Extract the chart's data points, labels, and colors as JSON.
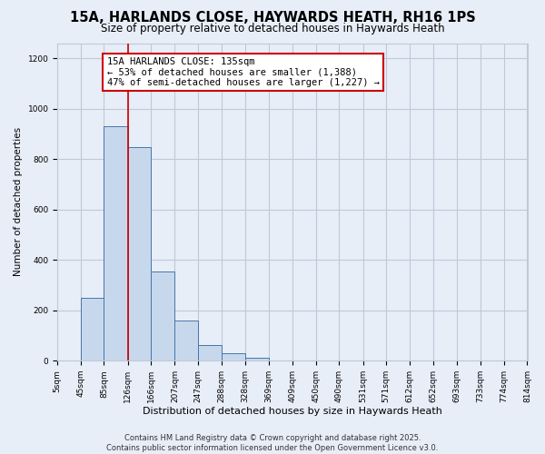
{
  "title": "15A, HARLANDS CLOSE, HAYWARDS HEATH, RH16 1PS",
  "subtitle": "Size of property relative to detached houses in Haywards Heath",
  "xlabel": "Distribution of detached houses by size in Haywards Heath",
  "ylabel": "Number of detached properties",
  "bar_color": "#c8d8ec",
  "bar_edge_color": "#4477aa",
  "background_color": "#e8eef8",
  "grid_color": "#c0c8d8",
  "vline_x": 126,
  "vline_color": "#cc0000",
  "bin_edges": [
    5,
    45,
    85,
    126,
    166,
    207,
    247,
    288,
    328,
    369,
    409,
    450,
    490,
    531,
    571,
    612,
    652,
    693,
    733,
    774,
    814
  ],
  "bin_heights": [
    0,
    248,
    930,
    848,
    355,
    158,
    62,
    28,
    10,
    0,
    0,
    0,
    0,
    0,
    0,
    0,
    0,
    0,
    0,
    0
  ],
  "ylim": [
    0,
    1260
  ],
  "yticks": [
    0,
    200,
    400,
    600,
    800,
    1000,
    1200
  ],
  "annotation_title": "15A HARLANDS CLOSE: 135sqm",
  "annotation_line2": "← 53% of detached houses are smaller (1,388)",
  "annotation_line3": "47% of semi-detached houses are larger (1,227) →",
  "annotation_box_color": "#ffffff",
  "annotation_box_edge": "#cc0000",
  "footnote1": "Contains HM Land Registry data © Crown copyright and database right 2025.",
  "footnote2": "Contains public sector information licensed under the Open Government Licence v3.0.",
  "title_fontsize": 10.5,
  "subtitle_fontsize": 8.5,
  "tick_fontsize": 6.5,
  "ylabel_fontsize": 7.5,
  "xlabel_fontsize": 8,
  "annotation_fontsize": 7.5,
  "footnote_fontsize": 6
}
